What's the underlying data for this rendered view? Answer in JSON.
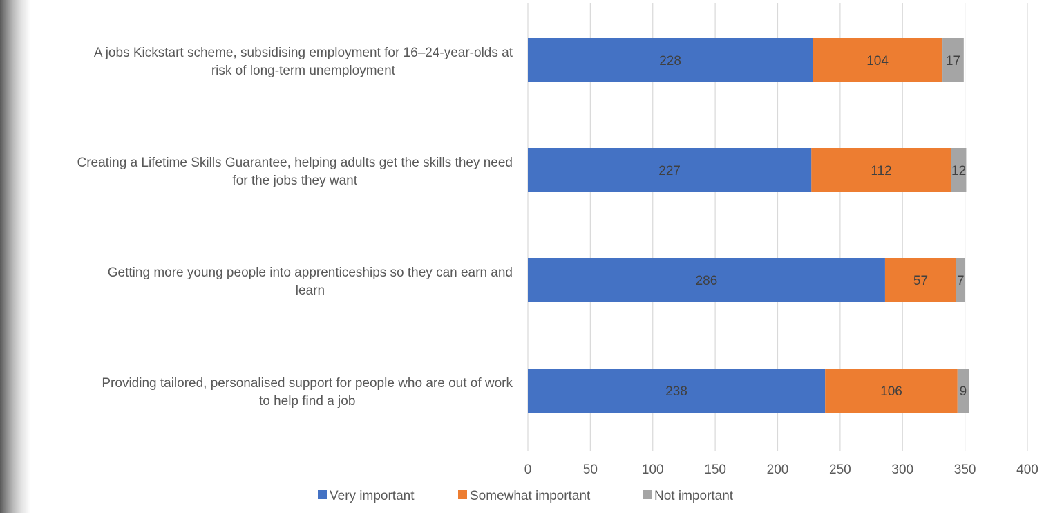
{
  "chart_data": {
    "type": "bar",
    "orientation": "horizontal",
    "stacked": true,
    "title": "",
    "xlabel": "",
    "ylabel": "",
    "categories": [
      "A jobs Kickstart scheme, subsidising employment for 16–24-year-olds at risk of long-term unemployment",
      "Creating a Lifetime Skills Guarantee, helping adults get the skills they need for the jobs they want",
      "Getting more young people into apprenticeships so they can earn and learn",
      "Providing tailored, personalised support for people who are out of work to help find a job"
    ],
    "category_lines": [
      [
        "A jobs Kickstart scheme, subsidising employment for 16–24-year-olds at",
        "risk of long-term unemployment"
      ],
      [
        "Creating a Lifetime Skills Guarantee, helping adults get the skills they need",
        "for the jobs they want"
      ],
      [
        "Getting more young people into apprenticeships so they can earn and",
        "learn"
      ],
      [
        "Providing tailored, personalised support for people who are out of work",
        "to help find a job"
      ]
    ],
    "series": [
      {
        "name": "Very important",
        "values": [
          228,
          227,
          286,
          238
        ],
        "color": "#4472C4"
      },
      {
        "name": "Somewhat important",
        "values": [
          104,
          112,
          57,
          106
        ],
        "color": "#ED7D31"
      },
      {
        "name": "Not important",
        "values": [
          17,
          12,
          7,
          9
        ],
        "color": "#A5A5A5"
      }
    ],
    "xlim": [
      0,
      400
    ],
    "xticks": [
      0,
      50,
      100,
      150,
      200,
      250,
      300,
      350,
      400
    ],
    "grid": true,
    "legend_position": "bottom",
    "data_labels": true
  }
}
